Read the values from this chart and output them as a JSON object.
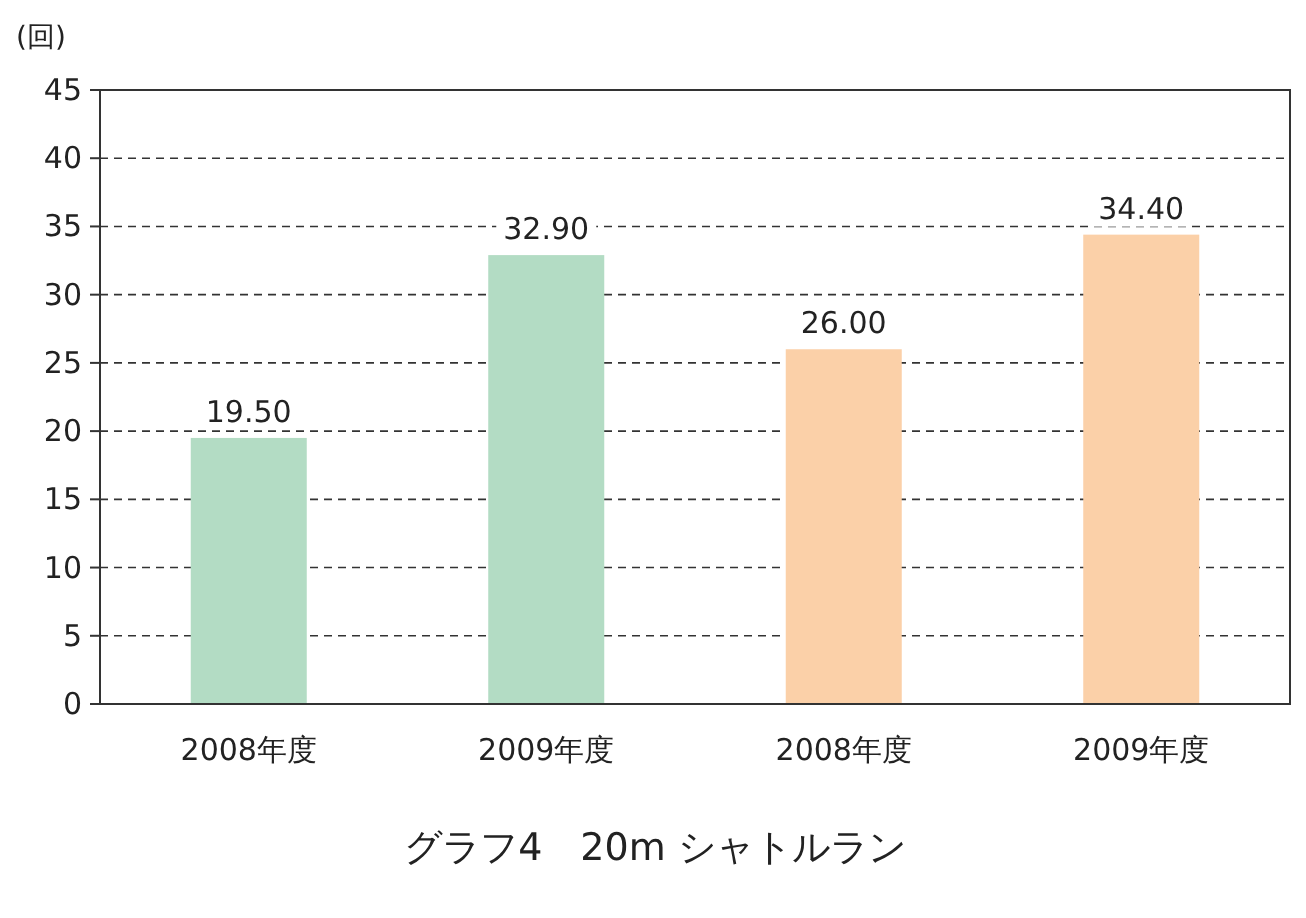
{
  "chart_data": {
    "type": "bar",
    "title": "グラフ4　20m シャトルラン",
    "ylabel": "(回)",
    "categories": [
      "2008年度",
      "2009年度",
      "2008年度",
      "2009年度"
    ],
    "values": [
      19.5,
      32.9,
      26.0,
      34.4
    ],
    "value_labels": [
      "19.50",
      "32.90",
      "26.00",
      "34.40"
    ],
    "colors": [
      "#b3dcc4",
      "#b3dcc4",
      "#fbd0a8",
      "#fbd0a8"
    ],
    "ylim": [
      0,
      45
    ],
    "yticks": [
      0,
      5,
      10,
      15,
      20,
      25,
      30,
      35,
      40,
      45
    ],
    "grid": "y"
  }
}
